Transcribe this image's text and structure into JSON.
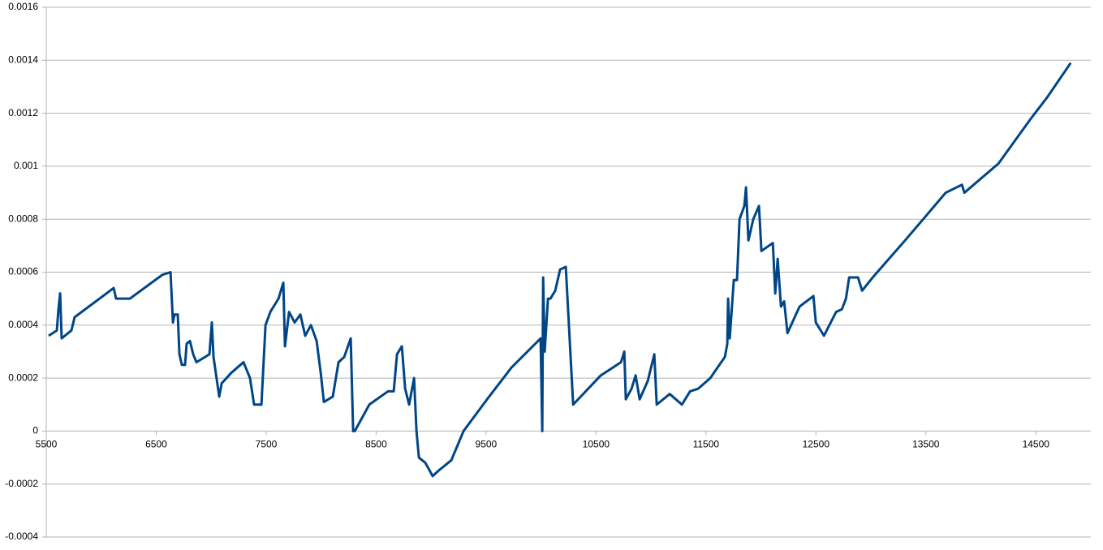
{
  "chart_data": {
    "type": "line",
    "color": "#004586",
    "grid": true,
    "xlim": [
      5500,
      15000
    ],
    "xticks": [
      5500,
      6500,
      7500,
      8500,
      9500,
      10500,
      11500,
      12500,
      13500,
      14500
    ],
    "ylim": [
      -0.0004,
      0.0016
    ],
    "yticks": [
      -0.0004,
      -0.0002,
      0,
      0.0002,
      0.0004,
      0.0006,
      0.0008,
      0.001,
      0.0012,
      0.0014,
      0.0016
    ],
    "x": [
      5522,
      5596,
      5611,
      5626,
      5640,
      5729,
      5758,
      6113,
      6135,
      6260,
      6556,
      6630,
      6652,
      6666,
      6696,
      6711,
      6733,
      6762,
      6777,
      6807,
      6836,
      6866,
      6984,
      7006,
      7021,
      7073,
      7095,
      7183,
      7294,
      7353,
      7390,
      7457,
      7494,
      7538,
      7612,
      7656,
      7671,
      7708,
      7759,
      7811,
      7855,
      7907,
      7959,
      7996,
      8025,
      8106,
      8158,
      8210,
      8269,
      8291,
      8306,
      8438,
      8608,
      8660,
      8690,
      8734,
      8764,
      8800,
      8845,
      8867,
      8889,
      8948,
      9014,
      9066,
      9184,
      9295,
      9509,
      9731,
      9996,
      10011,
      10019,
      10033,
      10063,
      10085,
      10129,
      10173,
      10225,
      10292,
      10543,
      10727,
      10757,
      10771,
      10823,
      10860,
      10897,
      10971,
      11030,
      11052,
      11170,
      11281,
      11355,
      11429,
      11539,
      11672,
      11694,
      11701,
      11716,
      11753,
      11782,
      11805,
      11849,
      11864,
      11886,
      11930,
      11982,
      12004,
      12108,
      12130,
      12152,
      12182,
      12211,
      12241,
      12351,
      12477,
      12499,
      12573,
      12684,
      12736,
      12773,
      12802,
      12883,
      12920,
      13016,
      13311,
      13496,
      13680,
      13828,
      13850,
      14160,
      14455,
      14603,
      14817
    ],
    "values": [
      0.00036,
      0.00038,
      0.00046,
      0.00052,
      0.00035,
      0.00038,
      0.00043,
      0.00054,
      0.0005,
      0.0005,
      0.00059,
      0.0006,
      0.00041,
      0.00044,
      0.00044,
      0.00029,
      0.00025,
      0.00025,
      0.00033,
      0.00034,
      0.00029,
      0.00026,
      0.00029,
      0.00041,
      0.00028,
      0.00013,
      0.00018,
      0.00022,
      0.00026,
      0.0002,
      0.0001,
      0.0001,
      0.0004,
      0.00045,
      0.0005,
      0.00056,
      0.00032,
      0.00045,
      0.00041,
      0.00044,
      0.00036,
      0.0004,
      0.00034,
      0.00022,
      0.00011,
      0.00013,
      0.00026,
      0.00028,
      0.00035,
      0,
      0,
      0.0001,
      0.00015,
      0.00015,
      0.00029,
      0.00032,
      0.00016,
      0.0001,
      0.0002,
      0,
      -0.0001,
      -0.00012,
      -0.00017,
      -0.00015,
      -0.00011,
      0,
      0.00012,
      0.00024,
      0.00035,
      0,
      0.00058,
      0.0003,
      0.0005,
      0.0005,
      0.00053,
      0.00061,
      0.00062,
      0.0001,
      0.00021,
      0.00026,
      0.0003,
      0.00012,
      0.00016,
      0.00021,
      0.00012,
      0.00019,
      0.00029,
      0.0001,
      0.00014,
      0.0001,
      0.00015,
      0.00016,
      0.0002,
      0.00028,
      0.00033,
      0.0005,
      0.00035,
      0.00057,
      0.00057,
      0.0008,
      0.00085,
      0.00092,
      0.00072,
      0.0008,
      0.00085,
      0.00068,
      0.00071,
      0.00052,
      0.00065,
      0.00047,
      0.00049,
      0.00037,
      0.00047,
      0.00051,
      0.00041,
      0.00036,
      0.00045,
      0.00046,
      0.0005,
      0.00058,
      0.00058,
      0.00053,
      0.00058,
      0.00072,
      0.00081,
      0.0009,
      0.00093,
      0.0009,
      0.00101,
      0.00118,
      0.00126,
      0.00139
    ]
  }
}
